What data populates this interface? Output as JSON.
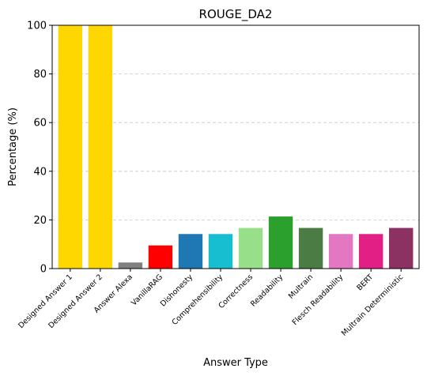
{
  "chart_data": {
    "type": "bar",
    "title": "ROUGE_DA2",
    "xlabel": "Answer Type",
    "ylabel": "Percentage (%)",
    "ylim": [
      0,
      100
    ],
    "yticks": [
      0,
      20,
      40,
      60,
      80,
      100
    ],
    "grid": "y-dashed",
    "categories": [
      "Designed Answer 1",
      "Designed Answer 2",
      "Answer Alexa",
      "VanillaRAG",
      "Dishonesty",
      "Comprehensibility",
      "Correctness",
      "Readability",
      "Multrain",
      "Flesch Readability",
      "BERT",
      "Multrain Deterministic"
    ],
    "values": [
      100,
      100,
      2.5,
      9.5,
      14.2,
      14.2,
      16.7,
      21.4,
      16.7,
      14.2,
      14.2,
      16.7
    ],
    "colors": [
      "#ffd700",
      "#ffd700",
      "#808080",
      "#ff0000",
      "#1f77b4",
      "#17becf",
      "#98df8a",
      "#2ca02c",
      "#4a7c44",
      "#e377c2",
      "#e11f85",
      "#8b3263"
    ]
  }
}
